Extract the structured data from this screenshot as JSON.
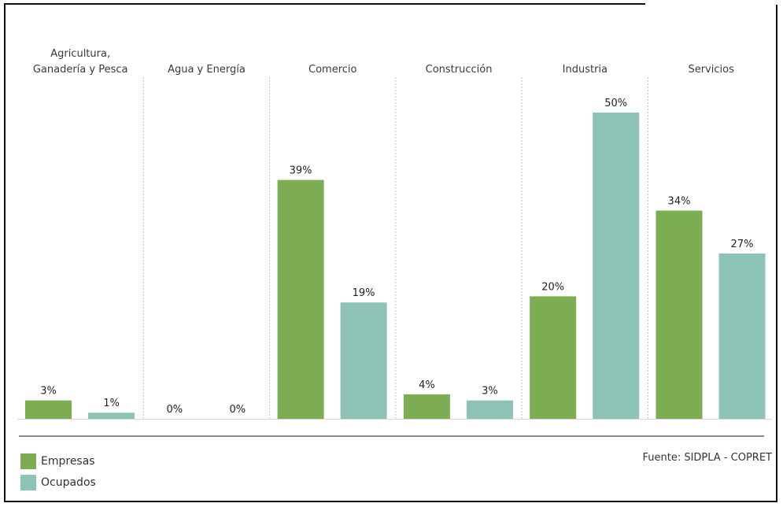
{
  "chart_data": {
    "type": "bar",
    "categories": [
      [
        "Agricultura,",
        "Ganadería y Pesca"
      ],
      [
        "Agua y Energía"
      ],
      [
        "Comercio"
      ],
      [
        "Construcción"
      ],
      [
        "Industria"
      ],
      [
        "Servicios"
      ]
    ],
    "series": [
      {
        "name": "Empresas",
        "color": "#7cad52",
        "values": [
          3,
          0,
          39,
          4,
          20,
          34
        ],
        "labels": [
          "3%",
          "0%",
          "39%",
          "4%",
          "20%",
          "34%"
        ]
      },
      {
        "name": "Ocupados",
        "color": "#8dc3b4",
        "values": [
          1,
          0,
          19,
          3,
          50,
          27
        ],
        "labels": [
          "1%",
          "0%",
          "19%",
          "3%",
          "50%",
          "27%"
        ]
      }
    ],
    "ylim": [
      0,
      50
    ],
    "legend_position": "bottom-left",
    "grid": false
  },
  "source_text": "Fuente: SIDPLA - COPRET"
}
